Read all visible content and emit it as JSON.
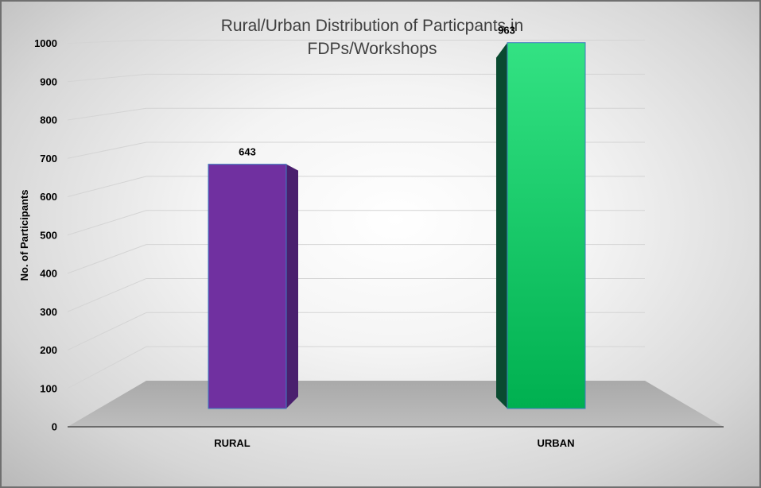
{
  "chart_data": {
    "type": "bar",
    "title": "Rural/Urban Distribution of Particpants in FDPs/Workshops",
    "title_lines": [
      "Rural/Urban Distribution of Particpants in",
      "FDPs/Workshops"
    ],
    "categories": [
      "RURAL",
      "URBAN"
    ],
    "values": [
      643,
      963
    ],
    "data_labels": [
      "643",
      "963"
    ],
    "xlabel": "",
    "ylabel": "No. of Participants",
    "ylim": [
      0,
      1000
    ],
    "yticks": [
      0,
      100,
      200,
      300,
      400,
      500,
      600,
      700,
      800,
      900,
      1000
    ],
    "ytick_labels": [
      "0",
      "100",
      "200",
      "300",
      "400",
      "500",
      "600",
      "700",
      "800",
      "900",
      "1000"
    ],
    "grid": true,
    "style": "3d-column",
    "colors": {
      "rural_front": "#7030a0",
      "rural_side": "#4a1f6e",
      "urban_front_top": "#33e283",
      "urban_front_bottom": "#00b050",
      "urban_side": "#0a4a30",
      "floor": "#b5b5b5",
      "bar_outline": "#3c7dbf"
    }
  }
}
